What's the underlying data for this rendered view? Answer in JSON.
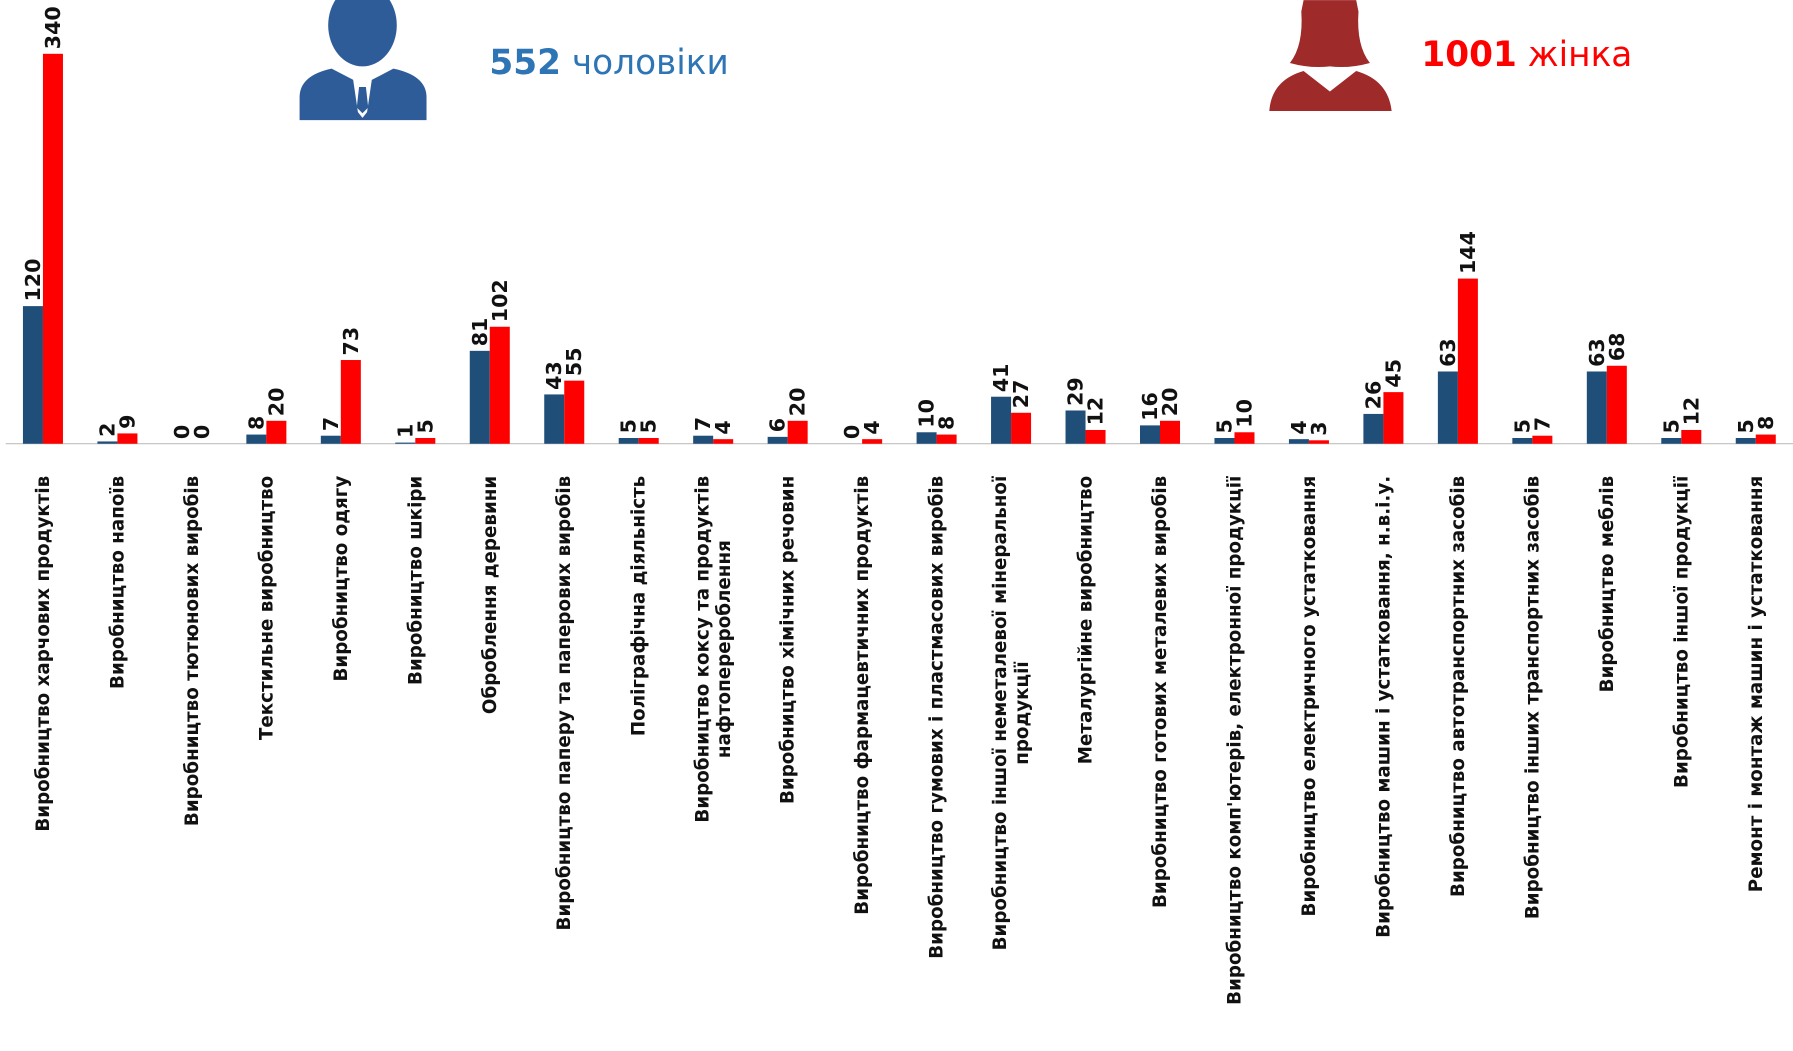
{
  "chart_data": {
    "type": "bar",
    "categories": [
      "Виробництво харчових продуктів",
      "Виробництво напоїв",
      "Виробництво тютюнових виробів",
      "Текстильне виробництво",
      "Виробництво одягу",
      "Виробництво шкіри",
      "Оброблення деревини",
      "Виробництво паперу та паперових виробів",
      "Поліграфічна діяльність",
      "Виробництво коксу та продуктів нафтоперероблення",
      "Виробництво хімічних речовин",
      "Виробництво фармацевтичних продуктів",
      "Виробництво гумових і пластмасових виробів",
      "Виробництво іншої неметалевої мінеральної продукції",
      "Металургійне виробництво",
      "Виробництво готових металевих виробів",
      "Виробництво комп'ютерів, електронної продукції",
      "Виробництво електричного устатковання",
      "Виробництво машин і устатковання, н.в.і.у.",
      "Виробництво автотранспортних засобів",
      "Виробництво інших транспортних засобів",
      "Виробництво меблів",
      "Виробництво іншої продукції",
      "Ремонт і монтаж машин і устатковання"
    ],
    "series": [
      {
        "name": "чоловіки",
        "total": 552,
        "color": "#1f4e79",
        "legend_color": "#2e75b6",
        "values": [
          120,
          2,
          0,
          8,
          7,
          1,
          81,
          43,
          5,
          7,
          6,
          0,
          10,
          41,
          29,
          16,
          5,
          4,
          26,
          63,
          5,
          63,
          5,
          5
        ]
      },
      {
        "name": "жінка",
        "total": 1001,
        "color": "#ff0000",
        "legend_color": "#ff0000",
        "values": [
          340,
          9,
          0,
          20,
          73,
          5,
          102,
          55,
          5,
          4,
          20,
          4,
          8,
          27,
          12,
          20,
          10,
          3,
          45,
          144,
          7,
          68,
          12,
          8
        ]
      }
    ],
    "ylim": [
      0,
      340
    ]
  }
}
